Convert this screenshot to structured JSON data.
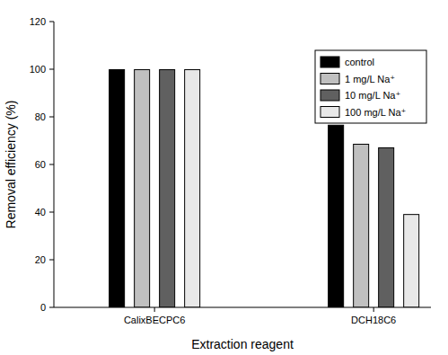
{
  "chart_data": {
    "type": "bar",
    "x_label": "Extraction reagent",
    "y_label": "Removal efficiency (%)",
    "categories": [
      "CalixBECPC6",
      "DCH18C6"
    ],
    "series": [
      {
        "name": "control",
        "color": "#000000",
        "values": [
          99.8,
          76.5
        ]
      },
      {
        "name": "1 mg/L Na⁺",
        "color": "#c0c0c0",
        "values": [
          99.8,
          68.5
        ]
      },
      {
        "name": "10 mg/L Na⁺",
        "color": "#606060",
        "values": [
          99.8,
          67
        ]
      },
      {
        "name": "100 mg/L Na⁺",
        "color": "#e8e8e8",
        "values": [
          99.8,
          39
        ]
      }
    ],
    "ylim": [
      0,
      120
    ],
    "yticks": [
      0,
      20,
      40,
      60,
      80,
      100,
      120
    ],
    "grid": false,
    "legend": "upper right"
  }
}
